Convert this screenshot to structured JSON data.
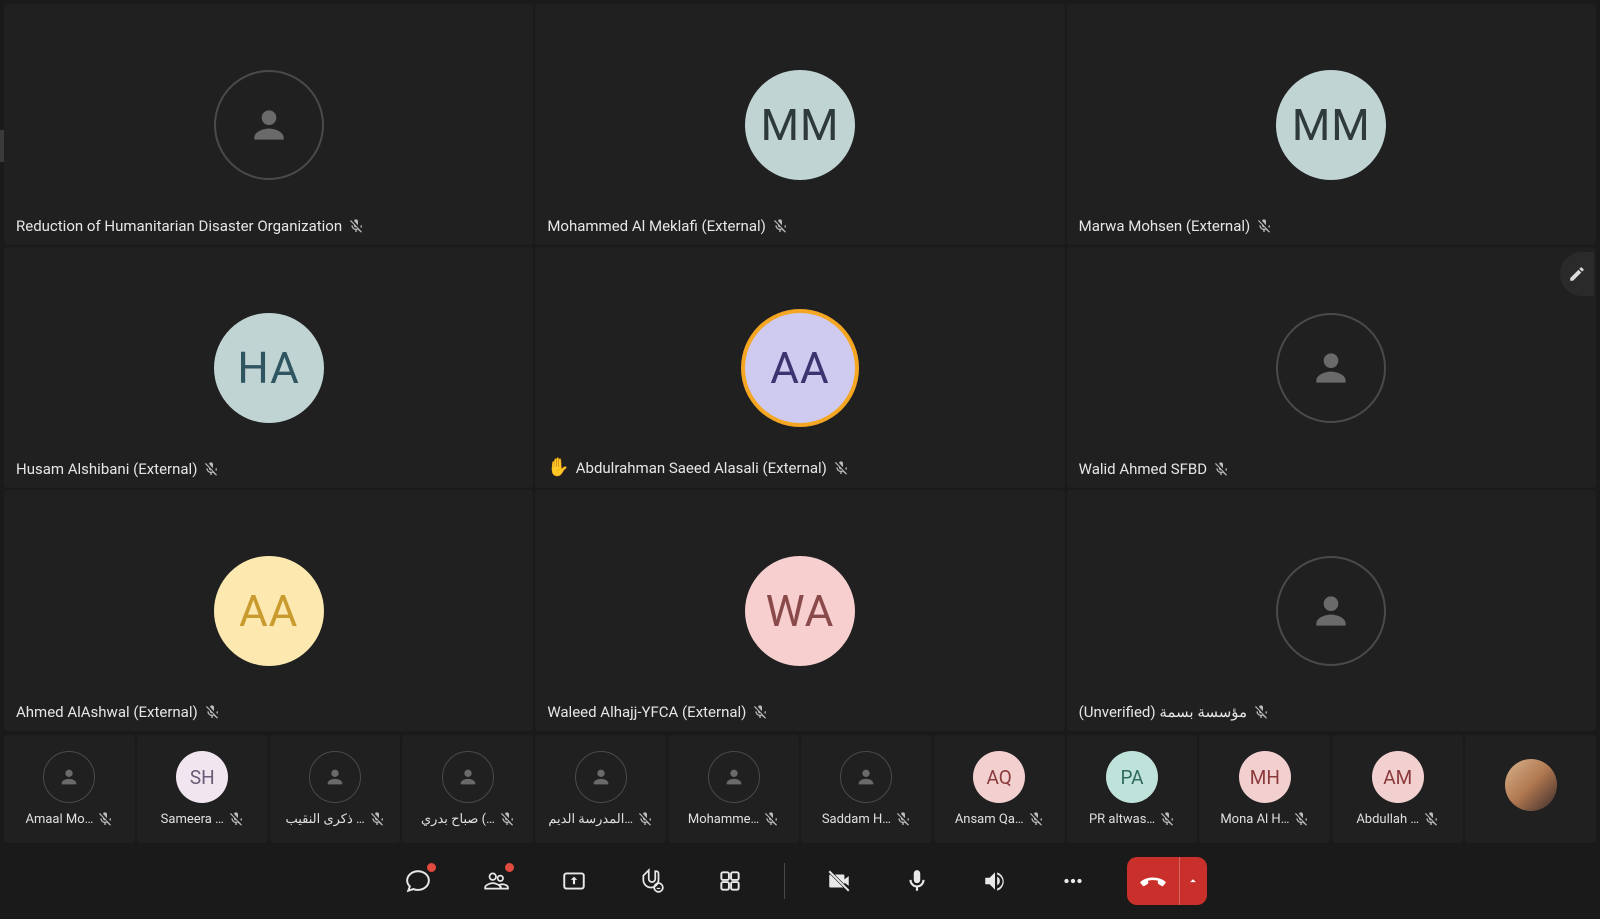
{
  "colors": {
    "bg": "#1a1a1a",
    "tile_bg": "#202020",
    "text": "#e6e6e6",
    "muted_icon": "#bcbcbc",
    "speaking_ring": "#f5a623",
    "leave_red": "#c9302c",
    "notif_red": "#e04a3f"
  },
  "grid": [
    {
      "name": "Reduction of Humanitarian Disaster Organization",
      "initials": "",
      "avatar_bg": "",
      "avatar_fg": "",
      "anon": true,
      "muted": true,
      "hand_raised": false,
      "speaking": false
    },
    {
      "name": "Mohammed Al Meklafi (External)",
      "initials": "MM",
      "avatar_bg": "#c0d4d4",
      "avatar_fg": "#2f3a3a",
      "anon": false,
      "muted": true,
      "hand_raised": false,
      "speaking": false
    },
    {
      "name": "Marwa Mohsen (External)",
      "initials": "MM",
      "avatar_bg": "#c0d4d4",
      "avatar_fg": "#2f3a3a",
      "anon": false,
      "muted": true,
      "hand_raised": false,
      "speaking": false
    },
    {
      "name": "Husam Alshibani (External)",
      "initials": "HA",
      "avatar_bg": "#c0d4d4",
      "avatar_fg": "#2f5560",
      "anon": false,
      "muted": true,
      "hand_raised": false,
      "speaking": false
    },
    {
      "name": "Abdulrahman Saeed Alasali (External)",
      "initials": "AA",
      "avatar_bg": "#cfcaf0",
      "avatar_fg": "#3a3570",
      "anon": false,
      "muted": true,
      "hand_raised": true,
      "speaking": true
    },
    {
      "name": "Walid Ahmed SFBD",
      "initials": "",
      "avatar_bg": "",
      "avatar_fg": "",
      "anon": true,
      "muted": true,
      "hand_raised": false,
      "speaking": false
    },
    {
      "name": "Ahmed AlAshwal (External)",
      "initials": "AA",
      "avatar_bg": "#fde9b0",
      "avatar_fg": "#c99a2e",
      "anon": false,
      "muted": true,
      "hand_raised": false,
      "speaking": false
    },
    {
      "name": "Waleed Alhajj-YFCA (External)",
      "initials": "WA",
      "avatar_bg": "#f7cfcf",
      "avatar_fg": "#8a4a4a",
      "anon": false,
      "muted": true,
      "hand_raised": false,
      "speaking": false
    },
    {
      "name": "(Unverified)  مؤسسة بسمة",
      "initials": "",
      "avatar_bg": "",
      "avatar_fg": "",
      "anon": true,
      "muted": true,
      "hand_raised": false,
      "speaking": false
    }
  ],
  "strip": [
    {
      "name": "Amaal Mo…",
      "initials": "",
      "anon": true,
      "avatar_bg": "",
      "avatar_fg": "",
      "muted": true,
      "video": false
    },
    {
      "name": "Sameera …",
      "initials": "SH",
      "anon": false,
      "avatar_bg": "#f1e6f0",
      "avatar_fg": "#6a5a75",
      "muted": true,
      "video": false
    },
    {
      "name": "ذكرى النقيب …",
      "initials": "",
      "anon": true,
      "avatar_bg": "",
      "avatar_fg": "",
      "muted": true,
      "video": false
    },
    {
      "name": "صباح بدري (…",
      "initials": "",
      "anon": true,
      "avatar_bg": "",
      "avatar_fg": "",
      "muted": true,
      "video": false
    },
    {
      "name": "المدرسة الديم…",
      "initials": "",
      "anon": true,
      "avatar_bg": "",
      "avatar_fg": "",
      "muted": true,
      "video": false
    },
    {
      "name": "Mohamme…",
      "initials": "",
      "anon": true,
      "avatar_bg": "",
      "avatar_fg": "",
      "muted": true,
      "video": false
    },
    {
      "name": "Saddam H…",
      "initials": "",
      "anon": true,
      "avatar_bg": "",
      "avatar_fg": "",
      "muted": true,
      "video": false
    },
    {
      "name": "Ansam Qa…",
      "initials": "AQ",
      "anon": false,
      "avatar_bg": "#f3d0d0",
      "avatar_fg": "#8a3a3a",
      "muted": true,
      "video": false
    },
    {
      "name": "PR altwas…",
      "initials": "PA",
      "anon": false,
      "avatar_bg": "#bfe3da",
      "avatar_fg": "#2f6a5a",
      "muted": true,
      "video": false
    },
    {
      "name": "Mona Al H…",
      "initials": "MH",
      "anon": false,
      "avatar_bg": "#f3d0d0",
      "avatar_fg": "#8a3a3a",
      "muted": true,
      "video": false
    },
    {
      "name": "Abdullah …",
      "initials": "AM",
      "anon": false,
      "avatar_bg": "#f3d0d0",
      "avatar_fg": "#8a3a3a",
      "muted": true,
      "video": false
    },
    {
      "name": "",
      "initials": "",
      "anon": false,
      "avatar_bg": "",
      "avatar_fg": "",
      "muted": false,
      "video": true
    }
  ],
  "toolbar": {
    "chat_notif": true,
    "people_notif": true
  }
}
